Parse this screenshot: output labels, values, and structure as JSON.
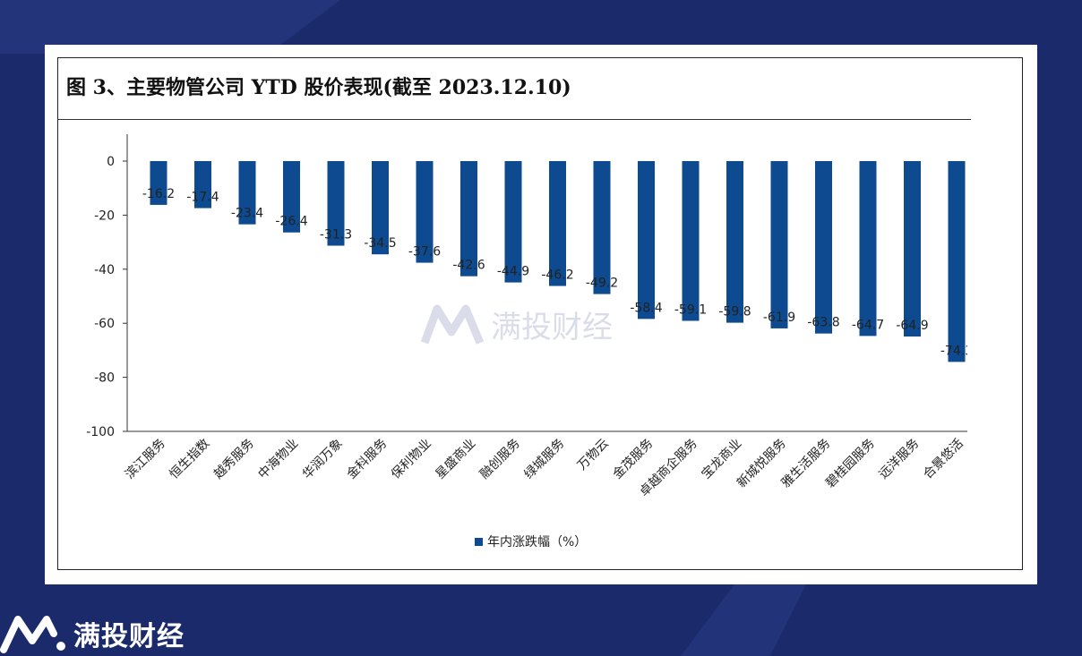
{
  "figure": {
    "title": "图 3、主要物管公司 YTD 股价表现(截至 2023.12.10)"
  },
  "watermark": {
    "text": "满投财经",
    "icon": "brand-logo-icon"
  },
  "brand": {
    "text": "满投财经",
    "icon": "brand-logo-icon",
    "color": "#ffffff"
  },
  "colors": {
    "background": "#1b2a6b",
    "bar": "#0d4a8f"
  },
  "chart_data": {
    "type": "bar",
    "categories": [
      "滨江服务",
      "恒生指数",
      "越秀服务",
      "中海物业",
      "华润万象",
      "金科服务",
      "保利物业",
      "星盛商业",
      "融创服务",
      "绿城服务",
      "万物云",
      "金茂服务",
      "卓越商企服务",
      "宝龙商业",
      "新城悦服务",
      "雅生活服务",
      "碧桂园服务",
      "远洋服务",
      "合景悠活"
    ],
    "series": [
      {
        "name": "年内涨跌幅（%）",
        "values": [
          -16.2,
          -17.4,
          -23.4,
          -26.4,
          -31.3,
          -34.5,
          -37.6,
          -42.6,
          -44.9,
          -46.2,
          -49.2,
          -58.4,
          -59.1,
          -59.8,
          -61.9,
          -63.8,
          -64.7,
          -64.9,
          -74.3
        ]
      }
    ],
    "data_labels": [
      "-16.2",
      "-17.4",
      "-23.4",
      "-26.4",
      "-31.3",
      "-34.5",
      "-37.6",
      "-42.6",
      "-44.9",
      "-46.2",
      "-49.2",
      "-58.4",
      "-59.1",
      "-59.8",
      "-61.9",
      "-63.8",
      "-64.7",
      "-64.9",
      "-74.3"
    ],
    "y_ticks": [
      "0",
      "-20",
      "-40",
      "-60",
      "-80",
      "-100"
    ],
    "ylim": [
      -100,
      0
    ],
    "grid": false,
    "legend_position": "bottom"
  }
}
